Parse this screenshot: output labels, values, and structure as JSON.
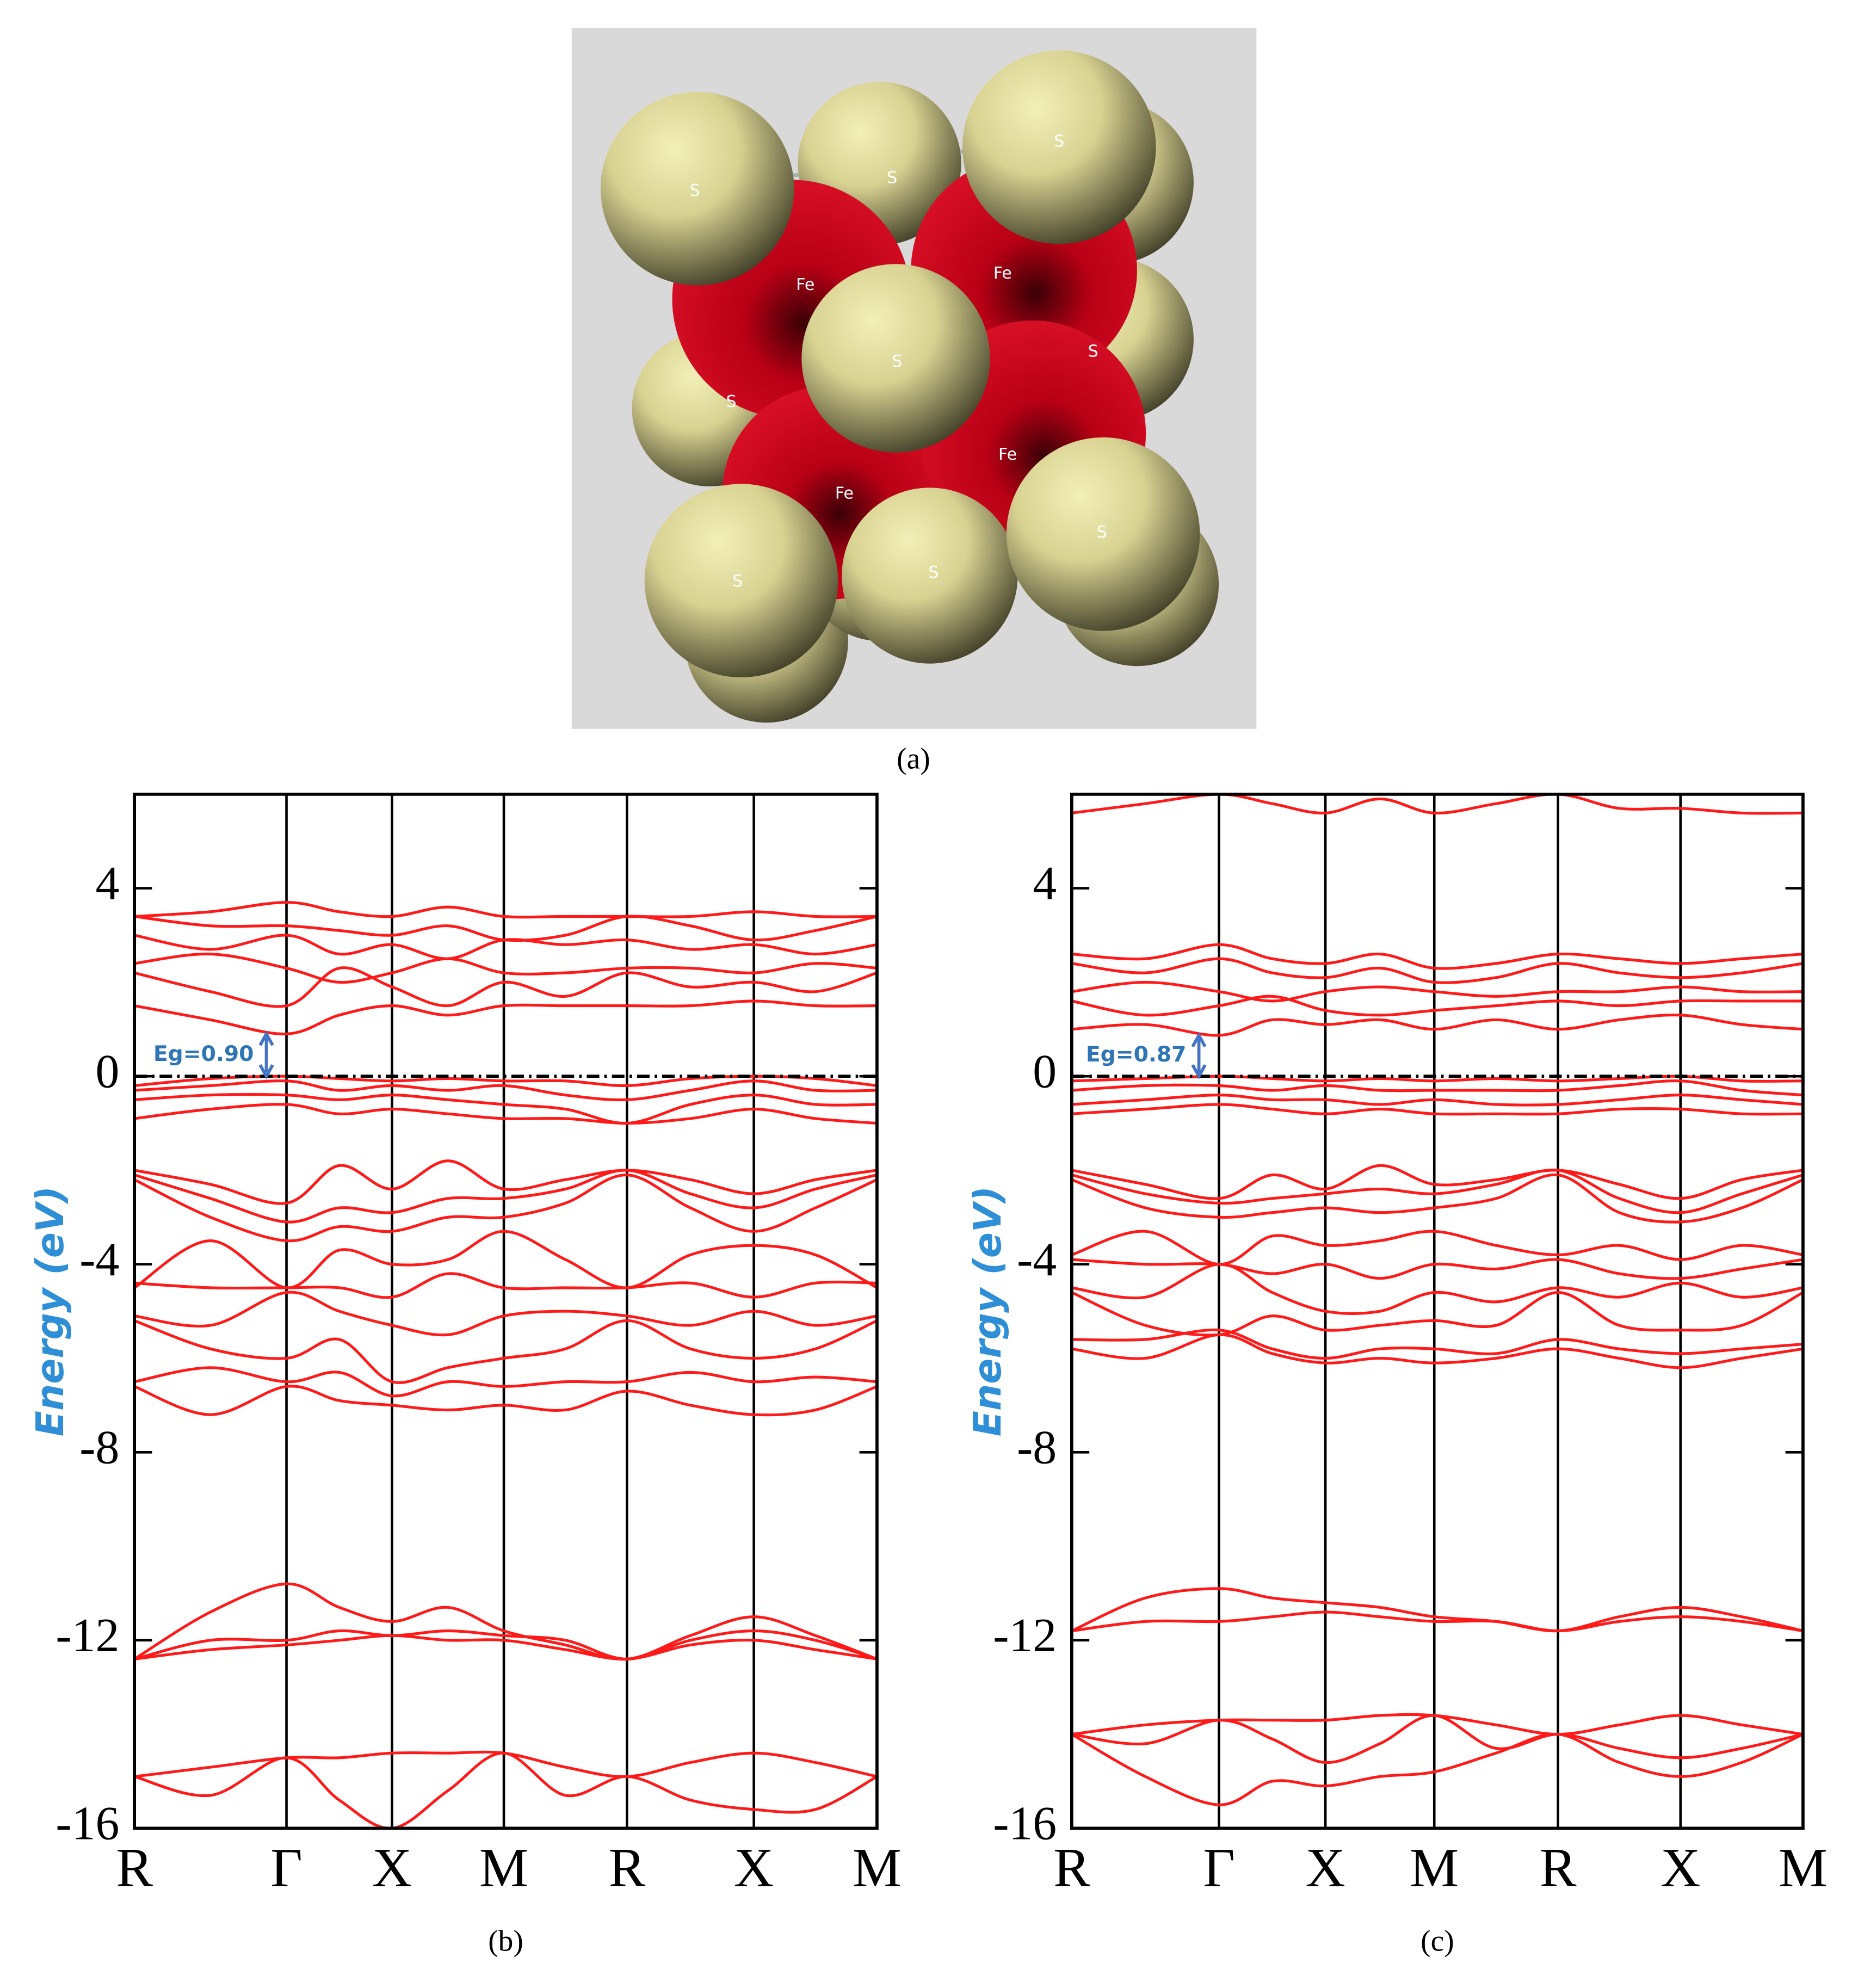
{
  "panel_a": {
    "caption": "(a)",
    "labels": [
      "S",
      "S",
      "S",
      "Fe",
      "Fe",
      "S",
      "S",
      "S",
      "Fe",
      "Fe",
      "S",
      "S",
      "S"
    ]
  },
  "chart_data": [
    {
      "type": "line",
      "caption": "(b)",
      "ylabel": "Energy (eV)",
      "color": "#ff1a1a",
      "xlim": [
        0,
        5.91
      ],
      "ylim": [
        -16,
        6
      ],
      "xticks": [
        {
          "value": 0,
          "label": "R"
        },
        {
          "value": 1.21,
          "label": "Γ"
        },
        {
          "value": 2.05,
          "label": "X"
        },
        {
          "value": 2.94,
          "label": "M"
        },
        {
          "value": 3.92,
          "label": "R"
        },
        {
          "value": 4.93,
          "label": "X"
        },
        {
          "value": 5.91,
          "label": "M"
        }
      ],
      "yticks": [
        4,
        0,
        -4,
        -8,
        -12,
        -16
      ],
      "fermi_level": 0,
      "band_gap": {
        "value": 0.9,
        "label": "Eg=0.90"
      },
      "x": [
        0,
        0.605,
        1.21,
        1.63,
        2.05,
        2.495,
        2.94,
        3.43,
        3.92,
        4.425,
        4.93,
        5.42,
        5.91
      ],
      "series": [
        {
          "values": [
            3.4,
            3.5,
            3.7,
            3.5,
            3.4,
            3.6,
            3.4,
            3.4,
            3.4,
            3.4,
            3.5,
            3.4,
            3.4
          ]
        },
        {
          "values": [
            3.4,
            3.2,
            3.2,
            3.1,
            3.0,
            3.2,
            2.9,
            3.0,
            3.4,
            3.2,
            2.9,
            3.1,
            3.4
          ]
        },
        {
          "values": [
            3.0,
            2.7,
            3.0,
            2.6,
            2.8,
            2.5,
            2.9,
            2.8,
            2.9,
            2.7,
            2.8,
            2.6,
            2.8
          ]
        },
        {
          "values": [
            2.4,
            2.6,
            2.3,
            2.0,
            2.2,
            2.5,
            2.2,
            2.2,
            2.3,
            2.3,
            2.2,
            2.4,
            2.3
          ]
        },
        {
          "values": [
            2.2,
            1.8,
            1.5,
            2.3,
            1.9,
            1.5,
            2.0,
            1.7,
            2.2,
            1.9,
            2.0,
            1.8,
            2.2
          ]
        },
        {
          "values": [
            1.5,
            1.2,
            0.9,
            1.3,
            1.5,
            1.3,
            1.5,
            1.5,
            1.5,
            1.5,
            1.6,
            1.5,
            1.5
          ]
        },
        {
          "values": [
            -0.2,
            -0.05,
            0,
            -0.05,
            -0.1,
            -0.05,
            -0.1,
            -0.1,
            -0.2,
            -0.05,
            0,
            -0.05,
            -0.2
          ]
        },
        {
          "values": [
            -0.3,
            -0.2,
            -0.1,
            -0.3,
            -0.2,
            -0.3,
            -0.2,
            -0.4,
            -0.5,
            -0.3,
            -0.1,
            -0.3,
            -0.3
          ]
        },
        {
          "values": [
            -0.5,
            -0.4,
            -0.4,
            -0.5,
            -0.4,
            -0.5,
            -0.6,
            -0.7,
            -1.0,
            -0.6,
            -0.4,
            -0.6,
            -0.6
          ]
        },
        {
          "values": [
            -0.9,
            -0.7,
            -0.6,
            -0.8,
            -0.7,
            -0.8,
            -0.9,
            -0.9,
            -1.0,
            -0.9,
            -0.7,
            -0.9,
            -1.0
          ]
        },
        {
          "values": [
            -2.0,
            -2.3,
            -2.7,
            -1.9,
            -2.4,
            -1.8,
            -2.4,
            -2.2,
            -2.0,
            -2.2,
            -2.5,
            -2.2,
            -2.0
          ]
        },
        {
          "values": [
            -2.1,
            -2.6,
            -3.1,
            -2.8,
            -2.9,
            -2.6,
            -2.6,
            -2.4,
            -2.0,
            -2.5,
            -2.8,
            -2.4,
            -2.1
          ]
        },
        {
          "values": [
            -2.2,
            -3.0,
            -3.5,
            -3.2,
            -3.3,
            -3.0,
            -3.0,
            -2.7,
            -2.1,
            -2.8,
            -3.3,
            -2.8,
            -2.2
          ]
        },
        {
          "values": [
            -4.5,
            -3.5,
            -4.5,
            -3.7,
            -4.0,
            -3.9,
            -3.3,
            -3.9,
            -4.5,
            -3.8,
            -3.6,
            -3.8,
            -4.5
          ]
        },
        {
          "values": [
            -4.4,
            -4.5,
            -4.5,
            -4.5,
            -4.7,
            -4.2,
            -4.5,
            -4.5,
            -4.5,
            -4.4,
            -4.7,
            -4.4,
            -4.4
          ]
        },
        {
          "values": [
            -5.1,
            -5.3,
            -4.6,
            -5.0,
            -5.3,
            -5.5,
            -5.1,
            -5.0,
            -5.1,
            -5.3,
            -5.0,
            -5.3,
            -5.1
          ]
        },
        {
          "values": [
            -5.2,
            -5.8,
            -6.0,
            -5.6,
            -6.5,
            -6.2,
            -6.0,
            -5.8,
            -5.2,
            -5.8,
            -6.0,
            -5.8,
            -5.2
          ]
        },
        {
          "values": [
            -6.5,
            -6.2,
            -6.5,
            -6.3,
            -6.8,
            -6.5,
            -6.6,
            -6.5,
            -6.5,
            -6.3,
            -6.5,
            -6.4,
            -6.5
          ]
        },
        {
          "values": [
            -6.6,
            -7.2,
            -6.6,
            -6.9,
            -7.0,
            -7.1,
            -7.0,
            -7.1,
            -6.7,
            -7.0,
            -7.2,
            -7.1,
            -6.6
          ]
        },
        {
          "values": [
            -12.4,
            -11.4,
            -10.8,
            -11.3,
            -11.6,
            -11.3,
            -11.8,
            -12.1,
            -12.4,
            -11.9,
            -11.5,
            -11.9,
            -12.4
          ]
        },
        {
          "values": [
            -12.4,
            -12.0,
            -12.0,
            -11.8,
            -11.9,
            -11.8,
            -11.9,
            -12.0,
            -12.4,
            -12.0,
            -11.8,
            -12.0,
            -12.4
          ]
        },
        {
          "values": [
            -12.4,
            -12.2,
            -12.1,
            -12.0,
            -11.9,
            -12.0,
            -12.0,
            -12.2,
            -12.4,
            -12.1,
            -12.0,
            -12.2,
            -12.4
          ]
        },
        {
          "values": [
            -14.9,
            -14.7,
            -14.5,
            -14.5,
            -14.4,
            -14.4,
            -14.4,
            -14.7,
            -14.9,
            -14.6,
            -14.4,
            -14.6,
            -14.9
          ]
        },
        {
          "values": [
            -14.9,
            -15.3,
            -14.5,
            -15.4,
            -16.0,
            -15.2,
            -14.4,
            -15.3,
            -14.9,
            -15.4,
            -15.6,
            -15.6,
            -14.9
          ]
        }
      ]
    },
    {
      "type": "line",
      "caption": "(c)",
      "ylabel": "Energy (eV)",
      "color": "#ff1a1a",
      "xlim": [
        0,
        5.91
      ],
      "ylim": [
        -16,
        6
      ],
      "xticks": [
        {
          "value": 0,
          "label": "R"
        },
        {
          "value": 1.19,
          "label": "Γ"
        },
        {
          "value": 2.05,
          "label": "X"
        },
        {
          "value": 2.93,
          "label": "M"
        },
        {
          "value": 3.93,
          "label": "R"
        },
        {
          "value": 4.92,
          "label": "X"
        },
        {
          "value": 5.91,
          "label": "M"
        }
      ],
      "yticks": [
        4,
        0,
        -4,
        -8,
        -12,
        -16
      ],
      "fermi_level": 0,
      "band_gap": {
        "value": 0.87,
        "label": "Eg=0.87"
      },
      "x": [
        0,
        0.595,
        1.19,
        1.62,
        2.05,
        2.49,
        2.93,
        3.43,
        3.93,
        4.425,
        4.92,
        5.415,
        5.91
      ],
      "series": [
        {
          "values": [
            5.6,
            5.8,
            6.0,
            5.8,
            5.6,
            5.9,
            5.6,
            5.8,
            6.0,
            5.7,
            5.7,
            5.6,
            5.6
          ]
        },
        {
          "values": [
            2.6,
            2.5,
            2.8,
            2.5,
            2.4,
            2.6,
            2.3,
            2.4,
            2.6,
            2.5,
            2.4,
            2.5,
            2.6
          ]
        },
        {
          "values": [
            2.4,
            2.2,
            2.5,
            2.2,
            2.1,
            2.3,
            2.0,
            2.1,
            2.4,
            2.2,
            2.1,
            2.2,
            2.4
          ]
        },
        {
          "values": [
            1.8,
            2.0,
            1.8,
            1.6,
            1.8,
            1.9,
            1.8,
            1.7,
            1.8,
            1.8,
            1.9,
            1.8,
            1.8
          ]
        },
        {
          "values": [
            1.6,
            1.3,
            1.5,
            1.7,
            1.4,
            1.3,
            1.4,
            1.5,
            1.6,
            1.5,
            1.6,
            1.6,
            1.6
          ]
        },
        {
          "values": [
            1.0,
            1.1,
            0.87,
            1.2,
            1.1,
            1.2,
            1.0,
            1.2,
            1.0,
            1.2,
            1.3,
            1.1,
            1.0
          ]
        },
        {
          "values": [
            -0.1,
            -0.05,
            0,
            -0.05,
            -0.1,
            -0.05,
            -0.1,
            -0.05,
            -0.1,
            -0.05,
            0,
            -0.1,
            -0.1
          ]
        },
        {
          "values": [
            -0.3,
            -0.2,
            -0.2,
            -0.3,
            -0.2,
            -0.3,
            -0.3,
            -0.3,
            -0.3,
            -0.2,
            -0.1,
            -0.3,
            -0.4
          ]
        },
        {
          "values": [
            -0.6,
            -0.5,
            -0.4,
            -0.5,
            -0.5,
            -0.6,
            -0.5,
            -0.6,
            -0.6,
            -0.5,
            -0.4,
            -0.5,
            -0.6
          ]
        },
        {
          "values": [
            -0.8,
            -0.7,
            -0.6,
            -0.7,
            -0.8,
            -0.7,
            -0.8,
            -0.8,
            -0.8,
            -0.7,
            -0.7,
            -0.8,
            -0.8
          ]
        },
        {
          "values": [
            -2.0,
            -2.3,
            -2.6,
            -2.1,
            -2.4,
            -1.9,
            -2.3,
            -2.2,
            -2.0,
            -2.3,
            -2.6,
            -2.2,
            -2.0
          ]
        },
        {
          "values": [
            -2.1,
            -2.5,
            -2.7,
            -2.6,
            -2.5,
            -2.4,
            -2.5,
            -2.3,
            -2.0,
            -2.6,
            -2.9,
            -2.5,
            -2.1
          ]
        },
        {
          "values": [
            -2.2,
            -2.8,
            -3.0,
            -2.9,
            -2.8,
            -2.9,
            -2.8,
            -2.6,
            -2.1,
            -2.9,
            -3.1,
            -2.8,
            -2.2
          ]
        },
        {
          "values": [
            -3.8,
            -3.3,
            -4.0,
            -3.4,
            -3.6,
            -3.5,
            -3.3,
            -3.6,
            -3.8,
            -3.6,
            -3.9,
            -3.6,
            -3.8
          ]
        },
        {
          "values": [
            -3.9,
            -4.0,
            -4.0,
            -4.2,
            -4.0,
            -4.3,
            -4.0,
            -4.1,
            -3.9,
            -4.2,
            -4.3,
            -4.1,
            -3.9
          ]
        },
        {
          "values": [
            -4.5,
            -4.7,
            -4.0,
            -4.6,
            -5.0,
            -5.0,
            -4.6,
            -4.8,
            -4.5,
            -4.7,
            -4.4,
            -4.7,
            -4.5
          ]
        },
        {
          "values": [
            -4.6,
            -5.3,
            -5.5,
            -5.1,
            -5.4,
            -5.3,
            -5.2,
            -5.3,
            -4.6,
            -5.3,
            -5.4,
            -5.3,
            -4.6
          ]
        },
        {
          "values": [
            -5.6,
            -5.6,
            -5.4,
            -5.8,
            -6.0,
            -5.8,
            -5.8,
            -5.9,
            -5.6,
            -5.8,
            -5.9,
            -5.8,
            -5.7
          ]
        },
        {
          "values": [
            -5.8,
            -6.0,
            -5.5,
            -5.9,
            -6.1,
            -6.0,
            -6.1,
            -6.0,
            -5.8,
            -6.0,
            -6.2,
            -6.0,
            -5.8
          ]
        },
        {
          "values": [
            -11.8,
            -11.1,
            -10.9,
            -11.1,
            -11.2,
            -11.3,
            -11.5,
            -11.6,
            -11.8,
            -11.5,
            -11.3,
            -11.5,
            -11.8
          ]
        },
        {
          "values": [
            -11.8,
            -11.6,
            -11.6,
            -11.5,
            -11.4,
            -11.5,
            -11.6,
            -11.6,
            -11.8,
            -11.6,
            -11.5,
            -11.6,
            -11.8
          ]
        },
        {
          "values": [
            -14.0,
            -13.8,
            -13.7,
            -13.7,
            -13.7,
            -13.6,
            -13.6,
            -13.8,
            -14.0,
            -13.8,
            -13.6,
            -13.8,
            -14.0
          ]
        },
        {
          "values": [
            -14.0,
            -14.2,
            -13.7,
            -14.1,
            -14.6,
            -14.2,
            -13.6,
            -14.3,
            -14.0,
            -14.3,
            -14.5,
            -14.3,
            -14.0
          ]
        },
        {
          "values": [
            -14.0,
            -14.9,
            -15.5,
            -15.0,
            -15.1,
            -14.9,
            -14.8,
            -14.4,
            -14.0,
            -14.6,
            -14.9,
            -14.6,
            -14.0
          ]
        }
      ]
    }
  ]
}
